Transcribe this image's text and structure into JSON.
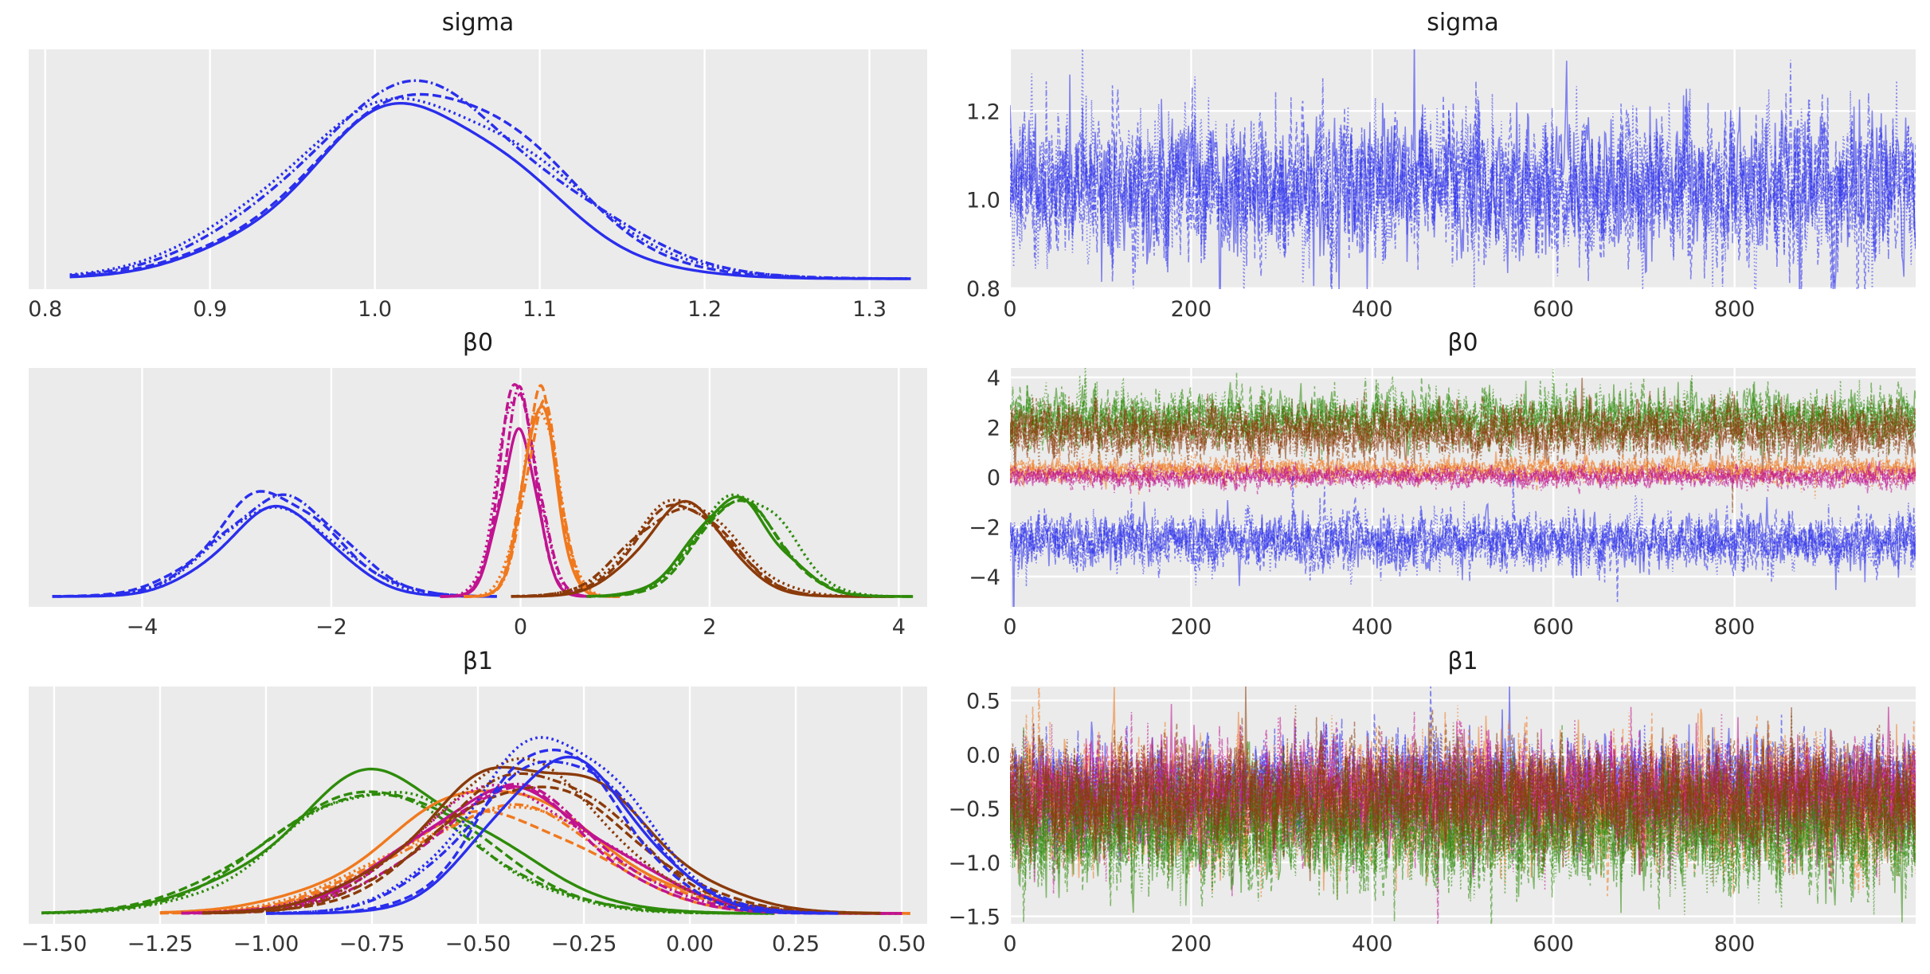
{
  "figure": {
    "kind": "arviz-trace-plot",
    "background": "#ffffff",
    "panel_background": "#ebebeb",
    "grid_color": "#ffffff",
    "tick_label_color": "#333333",
    "title_color": "#1d1d1d"
  },
  "palette": {
    "blue": "#2a2eec",
    "orange": "#f0791e",
    "green": "#2e8b0a",
    "magenta": "#c01390",
    "brown": "#8b3a0a"
  },
  "linestyles": [
    "solid",
    "dashed",
    "dashdot",
    "dotted"
  ],
  "chains_per_group": 4,
  "chart_data": [
    {
      "id": "sigma-kde",
      "type": "line",
      "subtype": "kde-posterior",
      "title": "sigma",
      "row": 0,
      "col": 0,
      "xlim": [
        0.79,
        1.335
      ],
      "grid": "vertical",
      "xticks": [
        {
          "v": 0.8,
          "label": "0.8"
        },
        {
          "v": 0.9,
          "label": "0.9"
        },
        {
          "v": 1.0,
          "label": "1.0"
        },
        {
          "v": 1.1,
          "label": "1.1"
        },
        {
          "v": 1.2,
          "label": "1.2"
        },
        {
          "v": 1.3,
          "label": "1.3"
        }
      ],
      "yticks": [],
      "groups": [
        {
          "name": "sigma",
          "color": "blue",
          "mean": 1.025,
          "std": 0.077,
          "peak": 0.88,
          "xmin": 0.815,
          "xmax": 1.325
        }
      ]
    },
    {
      "id": "sigma-trace",
      "type": "line",
      "subtype": "mcmc-trace",
      "title": "sigma",
      "row": 0,
      "col": 1,
      "xlim": [
        0,
        1000
      ],
      "ylim": [
        0.798,
        1.339
      ],
      "grid": "both",
      "xticks": [
        {
          "v": 0,
          "label": "0"
        },
        {
          "v": 200,
          "label": "200"
        },
        {
          "v": 400,
          "label": "400"
        },
        {
          "v": 600,
          "label": "600"
        },
        {
          "v": 800,
          "label": "800"
        }
      ],
      "yticks": [
        {
          "v": 0.8,
          "label": "0.8"
        },
        {
          "v": 1.0,
          "label": "1.0"
        },
        {
          "v": 1.2,
          "label": "1.2"
        }
      ],
      "n_draws": 1000,
      "groups": [
        {
          "name": "sigma",
          "color": "blue",
          "mean": 1.03,
          "std": 0.082
        }
      ]
    },
    {
      "id": "beta0-kde",
      "type": "line",
      "subtype": "kde-posterior",
      "title": "β0",
      "row": 1,
      "col": 0,
      "xlim": [
        -5.2,
        4.3
      ],
      "grid": "vertical",
      "xticks": [
        {
          "v": -4,
          "label": "−4"
        },
        {
          "v": -2,
          "label": "−2"
        },
        {
          "v": 0,
          "label": "0"
        },
        {
          "v": 2,
          "label": "2"
        },
        {
          "v": 4,
          "label": "4"
        }
      ],
      "yticks": [],
      "groups": [
        {
          "name": "beta0[0]",
          "color": "blue",
          "mean": -2.55,
          "std": 0.6,
          "peak": 0.45,
          "xmin": -4.95,
          "xmax": -0.25
        },
        {
          "name": "beta0[1]",
          "color": "magenta",
          "mean": -0.02,
          "std": 0.19,
          "peak": 0.9,
          "xmin": -0.85,
          "xmax": 0.75
        },
        {
          "name": "beta0[2]",
          "color": "orange",
          "mean": 0.22,
          "std": 0.2,
          "peak": 0.92,
          "xmin": -0.6,
          "xmax": 1.05
        },
        {
          "name": "beta0[3]",
          "color": "brown",
          "mean": 1.72,
          "std": 0.48,
          "peak": 0.47,
          "xmin": -0.1,
          "xmax": 3.95
        },
        {
          "name": "beta0[4]",
          "color": "green",
          "mean": 2.32,
          "std": 0.45,
          "peak": 0.5,
          "xmin": 0.7,
          "xmax": 4.15
        }
      ]
    },
    {
      "id": "beta0-trace",
      "type": "line",
      "subtype": "mcmc-trace",
      "title": "β0",
      "row": 1,
      "col": 1,
      "xlim": [
        0,
        1000
      ],
      "ylim": [
        -5.22,
        4.38
      ],
      "grid": "both",
      "xticks": [
        {
          "v": 0,
          "label": "0"
        },
        {
          "v": 200,
          "label": "200"
        },
        {
          "v": 400,
          "label": "400"
        },
        {
          "v": 600,
          "label": "600"
        },
        {
          "v": 800,
          "label": "800"
        }
      ],
      "yticks": [
        {
          "v": -4,
          "label": "−4"
        },
        {
          "v": -2,
          "label": "−2"
        },
        {
          "v": 0,
          "label": "0"
        },
        {
          "v": 2,
          "label": "2"
        },
        {
          "v": 4,
          "label": "4"
        }
      ],
      "n_draws": 1000,
      "groups": [
        {
          "name": "beta0[4]",
          "color": "green",
          "mean": 2.35,
          "std": 0.55
        },
        {
          "name": "beta0[3]",
          "color": "brown",
          "mean": 1.85,
          "std": 0.55
        },
        {
          "name": "beta0[2]",
          "color": "orange",
          "mean": 0.28,
          "std": 0.24
        },
        {
          "name": "beta0[1]",
          "color": "magenta",
          "mean": 0.0,
          "std": 0.2
        },
        {
          "name": "beta0[0]",
          "color": "blue",
          "mean": -2.6,
          "std": 0.55
        }
      ]
    },
    {
      "id": "beta1-kde",
      "type": "line",
      "subtype": "kde-posterior",
      "title": "β1",
      "row": 2,
      "col": 0,
      "xlim": [
        -1.56,
        0.56
      ],
      "grid": "vertical",
      "xticks": [
        {
          "v": -1.5,
          "label": "−1.50"
        },
        {
          "v": -1.25,
          "label": "−1.25"
        },
        {
          "v": -1.0,
          "label": "−1.00"
        },
        {
          "v": -0.75,
          "label": "−0.75"
        },
        {
          "v": -0.5,
          "label": "−0.50"
        },
        {
          "v": -0.25,
          "label": "−0.25"
        },
        {
          "v": 0.0,
          "label": "0.00"
        },
        {
          "v": 0.25,
          "label": "0.25"
        },
        {
          "v": 0.5,
          "label": "0.50"
        }
      ],
      "yticks": [],
      "groups": [
        {
          "name": "beta1[4]",
          "color": "green",
          "mean": -0.73,
          "std": 0.225,
          "peak": 0.62,
          "xmin": -1.53,
          "xmax": 0.2
        },
        {
          "name": "beta1[2]",
          "color": "orange",
          "mean": -0.46,
          "std": 0.25,
          "peak": 0.55,
          "xmin": -1.25,
          "xmax": 0.52
        },
        {
          "name": "beta1[1]",
          "color": "magenta",
          "mean": -0.43,
          "std": 0.23,
          "peak": 0.58,
          "xmin": -1.2,
          "xmax": 0.5
        },
        {
          "name": "beta1[3]",
          "color": "brown",
          "mean": -0.39,
          "std": 0.22,
          "peak": 0.7,
          "xmin": -1.15,
          "xmax": 0.45
        },
        {
          "name": "beta1[0]",
          "color": "blue",
          "mean": -0.305,
          "std": 0.175,
          "peak": 0.8,
          "xmin": -1.0,
          "xmax": 0.35
        }
      ]
    },
    {
      "id": "beta1-trace",
      "type": "line",
      "subtype": "mcmc-trace",
      "title": "β1",
      "row": 2,
      "col": 1,
      "xlim": [
        0,
        1000
      ],
      "ylim": [
        -1.57,
        0.63
      ],
      "grid": "both",
      "xticks": [
        {
          "v": 0,
          "label": "0"
        },
        {
          "v": 200,
          "label": "200"
        },
        {
          "v": 400,
          "label": "400"
        },
        {
          "v": 600,
          "label": "600"
        },
        {
          "v": 800,
          "label": "800"
        }
      ],
      "yticks": [
        {
          "v": 0.5,
          "label": "0.5"
        },
        {
          "v": 0.0,
          "label": "0.0"
        },
        {
          "v": -0.5,
          "label": "−0.5"
        },
        {
          "v": -1.0,
          "label": "−1.0"
        },
        {
          "v": -1.5,
          "label": "−1.5"
        }
      ],
      "n_draws": 1000,
      "groups": [
        {
          "name": "beta1[0]",
          "color": "blue",
          "mean": -0.3,
          "std": 0.21
        },
        {
          "name": "beta1[2]",
          "color": "orange",
          "mean": -0.44,
          "std": 0.27
        },
        {
          "name": "beta1[1]",
          "color": "magenta",
          "mean": -0.42,
          "std": 0.26
        },
        {
          "name": "beta1[4]",
          "color": "green",
          "mean": -0.72,
          "std": 0.26
        },
        {
          "name": "beta1[3]",
          "color": "brown",
          "mean": -0.38,
          "std": 0.23
        }
      ]
    }
  ]
}
